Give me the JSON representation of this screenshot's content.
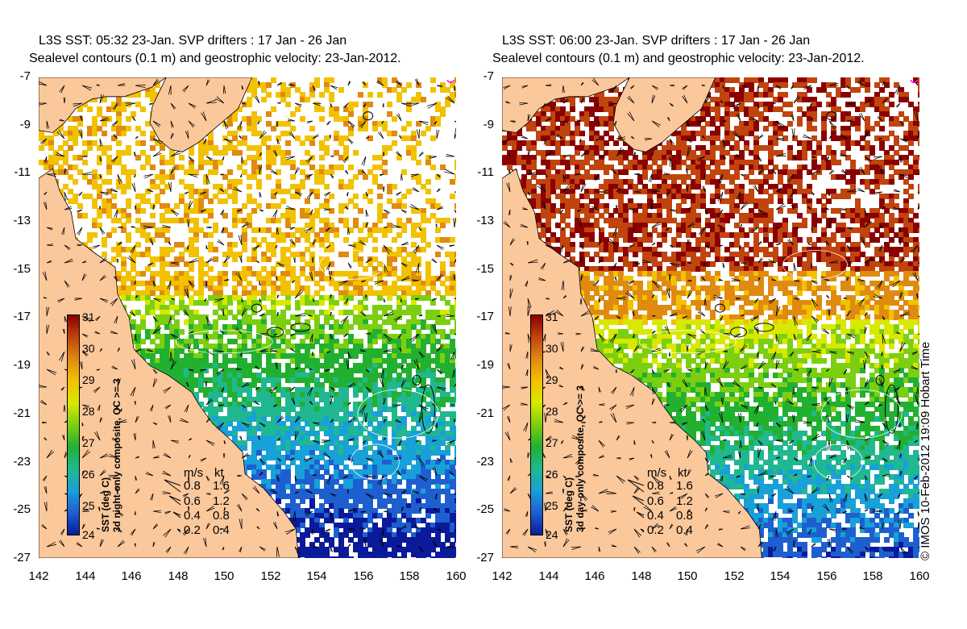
{
  "panels": [
    {
      "id": "left",
      "title_line1": "L3S SST: 05:32 23-Jan. SVP drifters : 17 Jan - 26 Jan",
      "title_line2": "Sealevel contours (0.1 m) and geostrophic velocity: 23-Jan-2012.",
      "colorbar_title": "SST (deg C)",
      "colorbar_subtitle": "3d night-only composite, QC >= 3",
      "sst_style": "night"
    },
    {
      "id": "right",
      "title_line1": "L3S SST: 06:00 23-Jan. SVP drifters : 17 Jan - 26 Jan",
      "title_line2": "Sealevel contours (0.1 m) and geostrophic velocity: 23-Jan-2012.",
      "colorbar_title": "SST (deg C)",
      "colorbar_subtitle": "3d day-only composite, QC >= 3",
      "sst_style": "day"
    }
  ],
  "axes": {
    "y_ticks": [
      "-7",
      "-9",
      "-11",
      "-13",
      "-15",
      "-17",
      "-19",
      "-21",
      "-23",
      "-25",
      "-27"
    ],
    "x_ticks": [
      "142",
      "144",
      "146",
      "148",
      "150",
      "152",
      "154",
      "156",
      "158",
      "160"
    ]
  },
  "colorbar": {
    "ticks": [
      "31",
      "30",
      "29",
      "28",
      "27",
      "26",
      "25",
      "24"
    ],
    "colors": [
      "#8b0000",
      "#c1440e",
      "#e08a10",
      "#f2c200",
      "#d8e800",
      "#7ccf10",
      "#22b030",
      "#20b890",
      "#18a0d8",
      "#1e5fd0",
      "#0a1a9a"
    ]
  },
  "velocity_legend": {
    "unit_ms": "m/s",
    "unit_kt": "kt",
    "rows": [
      {
        "ms": "0.8",
        "kt": "1.6"
      },
      {
        "ms": "0.6",
        "kt": "1.2"
      },
      {
        "ms": "0.4",
        "kt": "0.8"
      },
      {
        "ms": "0.2",
        "kt": "0.4"
      }
    ]
  },
  "colors": {
    "land": "#fbc89c",
    "ocean_blank": "#ffffff",
    "marker": "#ff00ff"
  },
  "copyright": "© IMOS 10-Feb-2012 19:09 Hobart Time"
}
